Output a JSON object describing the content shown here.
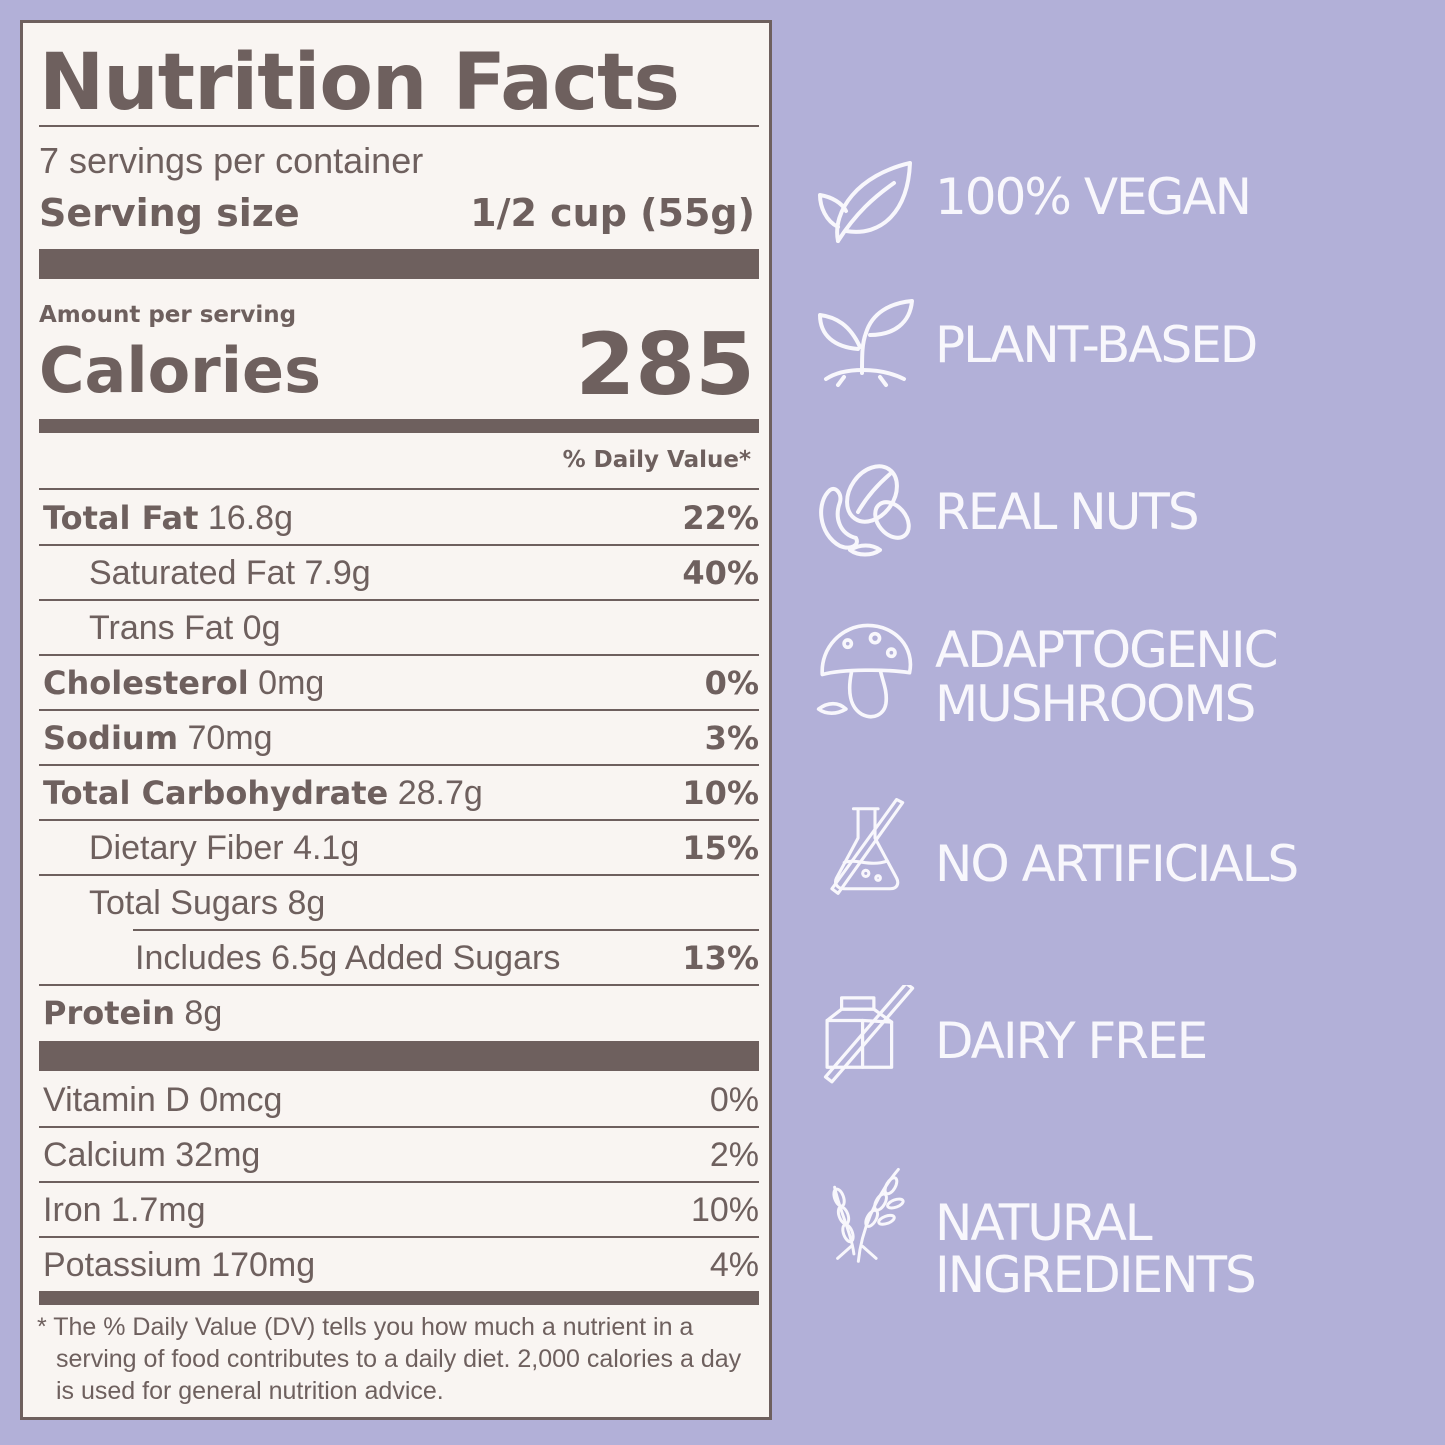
{
  "label": {
    "title": "Nutrition Facts",
    "servings_per_container": "7 servings per container",
    "serving_size_label": "Serving size",
    "serving_size_value": "1/2 cup (55g)",
    "amount_per_serving": "Amount per serving",
    "calories_label": "Calories",
    "calories_value": "285",
    "daily_value_header": "% Daily Value*",
    "nutrients": [
      {
        "name": "Total Fat",
        "amount": "16.8g",
        "dv": "22%"
      },
      {
        "name": "Saturated Fat",
        "amount": "7.9g",
        "dv": "40%"
      },
      {
        "name": "Trans Fat",
        "amount": "0g",
        "dv": ""
      },
      {
        "name": "Cholesterol",
        "amount": "0mg",
        "dv": "0%"
      },
      {
        "name": "Sodium",
        "amount": "70mg",
        "dv": "3%"
      },
      {
        "name": "Total Carbohydrate",
        "amount": "28.7g",
        "dv": "10%"
      },
      {
        "name": "Dietary Fiber",
        "amount": "4.1g",
        "dv": "15%"
      },
      {
        "name": "Total Sugars",
        "amount": "8g",
        "dv": ""
      },
      {
        "name": "Includes 6.5g Added Sugars",
        "amount": "",
        "dv": "13%"
      },
      {
        "name": "Protein",
        "amount": "8g",
        "dv": ""
      }
    ],
    "vitamins": [
      {
        "name": "Vitamin D",
        "amount": "0mcg",
        "dv": "0%"
      },
      {
        "name": "Calcium",
        "amount": "32mg",
        "dv": "2%"
      },
      {
        "name": "Iron",
        "amount": "1.7mg",
        "dv": "10%"
      },
      {
        "name": "Potassium",
        "amount": "170mg",
        "dv": "4%"
      }
    ],
    "footnote_1": "* The % Daily Value (DV) tells you how much a nutrient in a serving of food contributes to a daily diet. 2,000 calories a day is used for general nutrition advice."
  },
  "badges": [
    {
      "line1": "100% VEGAN",
      "line2": "",
      "icon": "leaf-icon"
    },
    {
      "line1": "PLANT-BASED",
      "line2": "",
      "icon": "sprout-icon"
    },
    {
      "line1": "REAL NUTS",
      "line2": "",
      "icon": "nuts-icon"
    },
    {
      "line1": "ADAPTOGENIC",
      "line2": "MUSHROOMS",
      "icon": "mushroom-icon"
    },
    {
      "line1": "NO ARTIFICIALS",
      "line2": "",
      "icon": "flask-crossed-icon"
    },
    {
      "line1": "DAIRY FREE",
      "line2": "",
      "icon": "milk-carton-crossed-icon"
    },
    {
      "line1": "NATURAL",
      "line2": "INGREDIENTS",
      "icon": "wheat-icon"
    }
  ],
  "colors": {
    "background": "#b2b0d8",
    "panel": "#f9f5f2",
    "ink": "#6e605e",
    "badge_text": "#f8f7fc"
  }
}
